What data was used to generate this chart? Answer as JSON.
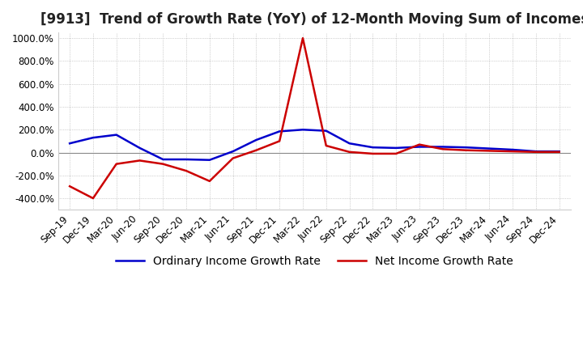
{
  "title": "[9913]  Trend of Growth Rate (YoY) of 12-Month Moving Sum of Incomes",
  "background_color": "#ffffff",
  "plot_background_color": "#ffffff",
  "grid_color": "#aaaaaa",
  "x_labels": [
    "Sep-19",
    "Dec-19",
    "Mar-20",
    "Jun-20",
    "Sep-20",
    "Dec-20",
    "Mar-21",
    "Jun-21",
    "Sep-21",
    "Dec-21",
    "Mar-22",
    "Jun-22",
    "Sep-22",
    "Dec-22",
    "Mar-23",
    "Jun-23",
    "Sep-23",
    "Dec-23",
    "Mar-24",
    "Jun-24",
    "Sep-24",
    "Dec-24"
  ],
  "ordinary_income": [
    80,
    130,
    155,
    40,
    -60,
    -60,
    -65,
    10,
    110,
    185,
    200,
    190,
    80,
    45,
    40,
    50,
    50,
    45,
    35,
    25,
    10,
    10
  ],
  "net_income": [
    -295,
    -400,
    -100,
    -70,
    -100,
    -160,
    -250,
    -50,
    20,
    100,
    1000,
    60,
    5,
    -10,
    -10,
    70,
    30,
    20,
    15,
    10,
    5,
    5
  ],
  "ylim": [
    -500,
    1050
  ],
  "yticks": [
    -400,
    -200,
    0,
    200,
    400,
    600,
    800,
    1000
  ],
  "ordinary_color": "#0000cc",
  "net_color": "#cc0000",
  "title_fontsize": 12,
  "legend_fontsize": 10,
  "tick_fontsize": 8.5
}
